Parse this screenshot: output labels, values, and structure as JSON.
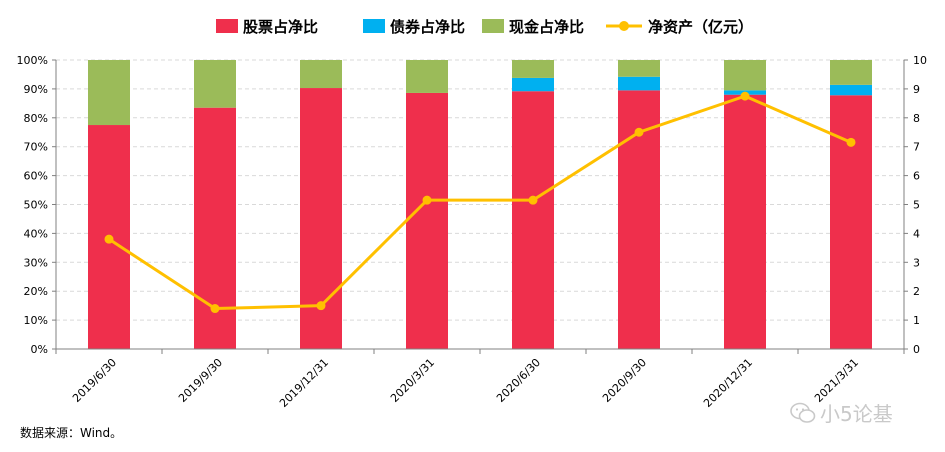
{
  "chart_data": {
    "type": "bar",
    "stacked": true,
    "categories": [
      "2019/6/30",
      "2019/9/30",
      "2019/12/31",
      "2020/3/31",
      "2020/6/30",
      "2020/9/30",
      "2020/12/31",
      "2021/3/31"
    ],
    "series": [
      {
        "name": "股票占净比",
        "color": "#ef2f4c",
        "axis": "left",
        "type": "bar",
        "values": [
          77.5,
          83.5,
          90.3,
          88.6,
          89.2,
          89.5,
          88.0,
          87.8
        ]
      },
      {
        "name": "债券占净比",
        "color": "#00b0f0",
        "axis": "left",
        "type": "bar",
        "values": [
          0,
          0,
          0,
          0,
          4.6,
          4.7,
          1.5,
          3.6
        ]
      },
      {
        "name": "现金占净比",
        "color": "#9bbb59",
        "axis": "left",
        "type": "bar",
        "values": [
          22.5,
          16.5,
          9.7,
          11.4,
          6.2,
          5.8,
          10.5,
          8.6
        ]
      },
      {
        "name": "净资产（亿元）",
        "color": "#ffc000",
        "axis": "right",
        "type": "line",
        "values": [
          3.8,
          1.4,
          1.5,
          5.15,
          5.15,
          7.5,
          8.75,
          7.15
        ]
      }
    ],
    "y_left": {
      "min": 0,
      "max": 100,
      "step": 10,
      "tick_labels": [
        "0%",
        "10%",
        "20%",
        "30%",
        "40%",
        "50%",
        "60%",
        "70%",
        "80%",
        "90%",
        "100%"
      ]
    },
    "y_right": {
      "min": 0,
      "max": 10,
      "step": 1,
      "tick_labels": [
        "0",
        "1",
        "2",
        "3",
        "4",
        "5",
        "6",
        "7",
        "8",
        "9",
        "10"
      ]
    },
    "grid": true,
    "legend_position": "top-center"
  },
  "source_note": "数据来源：Wind。",
  "watermark": "小5论基"
}
